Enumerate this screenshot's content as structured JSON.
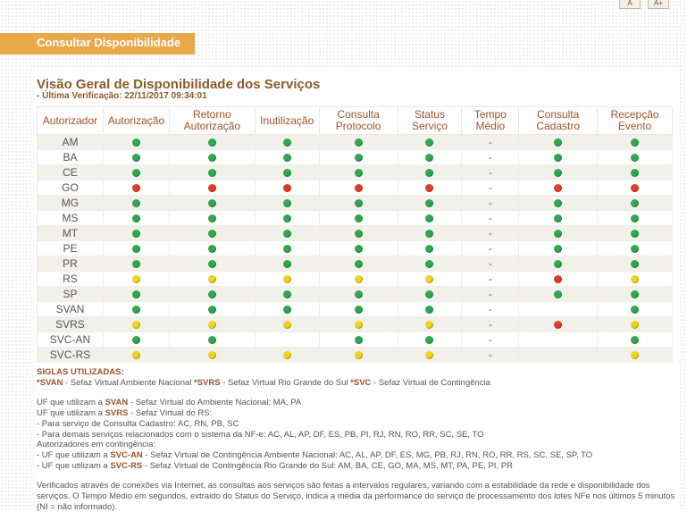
{
  "top_buttons": [
    "A",
    "A+"
  ],
  "section_title": "Consultar Disponibilidade",
  "title": "Visão Geral de Disponibilidade dos Serviços",
  "subtitle": "- Última Verificação: 22/11/2017 09:34:01",
  "table": {
    "headers": [
      "Autorizador",
      "Autorização",
      "Retorno Autorização",
      "Inutilização",
      "Consulta Protocolo",
      "Status Serviço",
      "Tempo Médio",
      "Consulta Cadastro",
      "Recepção Evento"
    ],
    "rows": [
      {
        "name": "AM",
        "s": [
          "g",
          "g",
          "g",
          "g",
          "g",
          "-",
          "g",
          "g"
        ]
      },
      {
        "name": "BA",
        "s": [
          "g",
          "g",
          "g",
          "g",
          "g",
          "-",
          "g",
          "g"
        ]
      },
      {
        "name": "CE",
        "s": [
          "g",
          "g",
          "g",
          "g",
          "g",
          "-",
          "g",
          "g"
        ]
      },
      {
        "name": "GO",
        "s": [
          "r",
          "r",
          "r",
          "r",
          "r",
          "-",
          "r",
          "r"
        ]
      },
      {
        "name": "MG",
        "s": [
          "g",
          "g",
          "g",
          "g",
          "g",
          "-",
          "g",
          "g"
        ]
      },
      {
        "name": "MS",
        "s": [
          "g",
          "g",
          "g",
          "g",
          "g",
          "-",
          "g",
          "g"
        ]
      },
      {
        "name": "MT",
        "s": [
          "g",
          "g",
          "g",
          "g",
          "g",
          "-",
          "g",
          "g"
        ]
      },
      {
        "name": "PE",
        "s": [
          "g",
          "g",
          "g",
          "g",
          "g",
          "-",
          "g",
          "g"
        ]
      },
      {
        "name": "PR",
        "s": [
          "g",
          "g",
          "g",
          "g",
          "g",
          "-",
          "g",
          "g"
        ]
      },
      {
        "name": "RS",
        "s": [
          "y",
          "y",
          "y",
          "y",
          "y",
          "-",
          "r",
          "y"
        ]
      },
      {
        "name": "SP",
        "s": [
          "g",
          "g",
          "g",
          "g",
          "g",
          "-",
          "g",
          "g"
        ]
      },
      {
        "name": "SVAN",
        "s": [
          "g",
          "g",
          "g",
          "g",
          "g",
          "-",
          "",
          "g"
        ]
      },
      {
        "name": "SVRS",
        "s": [
          "y",
          "y",
          "y",
          "y",
          "y",
          "-",
          "r",
          "y"
        ]
      },
      {
        "name": "SVC-AN",
        "s": [
          "g",
          "g",
          "",
          "g",
          "g",
          "-",
          "",
          "g"
        ]
      },
      {
        "name": "SVC-RS",
        "s": [
          "y",
          "y",
          "y",
          "y",
          "y",
          "-",
          "",
          "y"
        ]
      }
    ],
    "status_colors": {
      "g": "#2fa84f",
      "r": "#e53b2c",
      "y": "#f2d21b"
    }
  },
  "legend": {
    "heading": "SIGLAS UTILIZADAS:",
    "siglas": [
      {
        "code": "*SVAN",
        "text": " - Sefaz Virtual Ambiente Nacional "
      },
      {
        "code": "*SVRS",
        "text": " - Sefaz Virtual Rio Grande do Sul "
      },
      {
        "code": "*SVC",
        "text": " - Sefaz Virtual de Contingência"
      }
    ],
    "svan_prefix": "UF que utilizam a ",
    "svan_code": "SVAN",
    "svan_text": " - Sefaz Virtual do Ambiente Nacional: MA, PA",
    "svrs_prefix": "UF que utilizam a ",
    "svrs_code": "SVRS",
    "svrs_text": " - Sefaz Virtual do RS:",
    "svrs_line1": "- Para serviço de Consulta Cadastro: AC, RN, PB, SC",
    "svrs_line2": "- Para demais serviços relacionados com o sistema da NF-e: AC, AL, AP, DF, ES, PB, PI, RJ, RN, RO, RR, SC, SE, TO",
    "contingencia_heading": "Autorizadores em contingência:",
    "svcan_prefix": "- UF que utilizam a ",
    "svcan_code": "SVC-AN",
    "svcan_text": " - Sefaz Virtual de Contingência Ambiente Nacional: AC, AL, AP, DF, ES, MG, PB, RJ, RN, RO, RR, RS, SC, SE, SP, TO",
    "svcrs_prefix": "- UF que utilizam a ",
    "svcrs_code": "SVC-RS",
    "svcrs_text": " - Sefaz Virtual de Contingência Rio Grande do Sul: AM, BA, CE, GO, MA, MS, MT, PA, PE, PI, PR",
    "footnote": "Verificados através de conexões via Internet, as consultas aos serviços são feitas a intervalos regulares, variando com a estabilidade da rede e disponibilidade dos serviços. O Tempo Médio em segundos, extraido do Status do Serviço, indica a média da performance do serviço de processamento dos lotes NFe nos últimos 5 minutos (NI = não informado)."
  }
}
